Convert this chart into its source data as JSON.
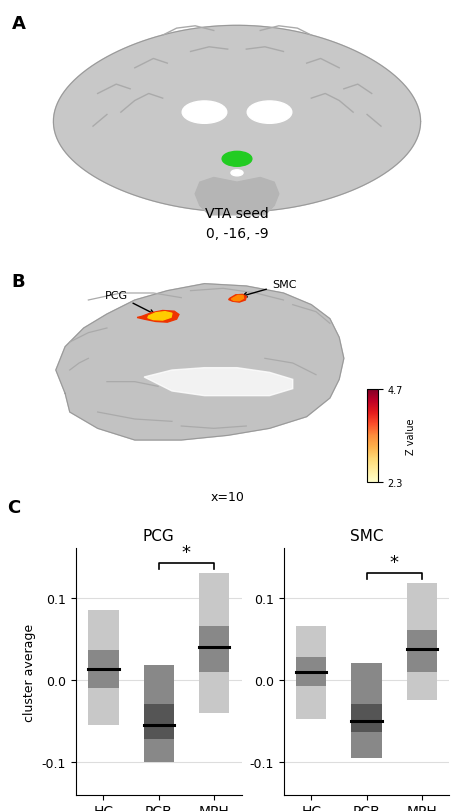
{
  "panel_A_label": "A",
  "panel_B_label": "B",
  "panel_C_label": "C",
  "vta_text_line1": "VTA seed",
  "vta_text_line2": "0, -16, -9",
  "brain_x_label": "x=10",
  "pcg_label": "PCG",
  "smc_label": "SMC",
  "colorbar_min": 2.3,
  "colorbar_max": 4.7,
  "colorbar_label": "Z value",
  "plot_title_left": "PCG",
  "plot_title_right": "SMC",
  "ylabel": "cluster average",
  "xtick_labels": [
    "HC",
    "PCB",
    "MPH"
  ],
  "ylim": [
    -0.14,
    0.16
  ],
  "yticks": [
    -0.1,
    0.0,
    0.1
  ],
  "pcg_median": [
    0.013,
    -0.055,
    0.04
  ],
  "pcg_iqr_low": [
    -0.01,
    -0.072,
    0.01
  ],
  "pcg_iqr_high": [
    0.036,
    -0.03,
    0.065
  ],
  "pcg_range_low": [
    -0.055,
    -0.1,
    -0.04
  ],
  "pcg_range_high": [
    0.085,
    0.018,
    0.13
  ],
  "smc_median": [
    0.01,
    -0.05,
    0.038
  ],
  "smc_iqr_low": [
    -0.008,
    -0.063,
    0.01
  ],
  "smc_iqr_high": [
    0.028,
    -0.03,
    0.06
  ],
  "smc_range_low": [
    -0.048,
    -0.095,
    -0.025
  ],
  "smc_range_high": [
    0.065,
    0.02,
    0.118
  ],
  "bar_width": 0.55,
  "box_colors_dark": [
    "#888888",
    "#555555",
    "#888888"
  ],
  "box_colors_light": [
    "#c8c8c8",
    "#888888",
    "#c8c8c8"
  ],
  "bg_color": "#ffffff",
  "grid_color": "#dddddd"
}
